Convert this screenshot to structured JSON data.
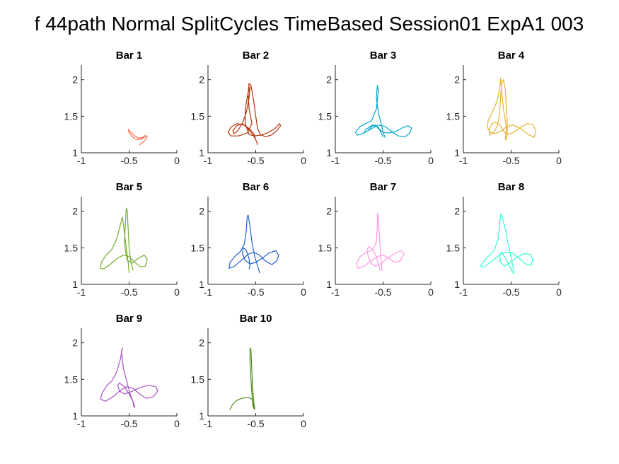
{
  "figure": {
    "suptitle": "f 44path Normal SplitCycles TimeBased Session01 ExpA1 003"
  },
  "chart_data": [
    {
      "type": "line",
      "title": "Bar 1",
      "xlim": [
        -1,
        0
      ],
      "ylim": [
        1,
        2.2
      ],
      "xticks": [
        "-1",
        "-0.5",
        "0"
      ],
      "yticks": [
        "1",
        "1.5",
        "2"
      ],
      "color": "#ff6a4d",
      "x": [
        -0.39,
        -0.35,
        -0.32,
        -0.31,
        -0.33,
        -0.37,
        -0.42,
        -0.45,
        -0.48,
        -0.5,
        -0.51,
        -0.49,
        -0.44,
        -0.4,
        -0.36,
        -0.33
      ],
      "y": [
        1.11,
        1.15,
        1.19,
        1.23,
        1.22,
        1.19,
        1.18,
        1.2,
        1.24,
        1.28,
        1.32,
        1.29,
        1.23,
        1.2,
        1.21,
        1.24
      ]
    },
    {
      "type": "line",
      "title": "Bar 2",
      "xlim": [
        -1,
        0
      ],
      "ylim": [
        1,
        2.2
      ],
      "xticks": [
        "-1",
        "-0.5",
        "0"
      ],
      "yticks": [
        "1",
        "1.5",
        "2"
      ],
      "color": "#b2330a",
      "x": [
        -0.48,
        -0.5,
        -0.52,
        -0.56,
        -0.62,
        -0.7,
        -0.76,
        -0.79,
        -0.76,
        -0.68,
        -0.59,
        -0.54,
        -0.57,
        -0.58,
        -0.57,
        -0.55,
        -0.52,
        -0.5,
        -0.48,
        -0.45,
        -0.4,
        -0.34,
        -0.28,
        -0.24,
        -0.25,
        -0.3,
        -0.38,
        -0.45,
        -0.52,
        -0.57,
        -0.61,
        -0.61,
        -0.58,
        -0.56,
        -0.57,
        -0.6,
        -0.64,
        -0.69,
        -0.73,
        -0.74,
        -0.7,
        -0.64,
        -0.58,
        -0.53,
        -0.5,
        -0.48
      ],
      "y": [
        1.11,
        1.18,
        1.26,
        1.32,
        1.38,
        1.4,
        1.35,
        1.28,
        1.23,
        1.23,
        1.27,
        1.4,
        1.6,
        1.8,
        1.95,
        1.92,
        1.7,
        1.5,
        1.33,
        1.25,
        1.22,
        1.24,
        1.3,
        1.37,
        1.4,
        1.33,
        1.27,
        1.24,
        1.23,
        1.25,
        1.4,
        1.6,
        1.82,
        1.9,
        1.75,
        1.55,
        1.4,
        1.3,
        1.26,
        1.3,
        1.37,
        1.4,
        1.33,
        1.25,
        1.18,
        1.11
      ]
    },
    {
      "type": "line",
      "title": "Bar 3",
      "xlim": [
        -1,
        0
      ],
      "ylim": [
        1,
        2.2
      ],
      "xticks": [
        "-1",
        "-0.5",
        "0"
      ],
      "yticks": [
        "1",
        "1.5",
        "2"
      ],
      "color": "#00a8cc",
      "x": [
        -0.48,
        -0.5,
        -0.52,
        -0.55,
        -0.57,
        -0.56,
        -0.55,
        -0.57,
        -0.62,
        -0.68,
        -0.74,
        -0.79,
        -0.77,
        -0.7,
        -0.62,
        -0.55,
        -0.48,
        -0.41,
        -0.34,
        -0.27,
        -0.22,
        -0.2,
        -0.24,
        -0.3,
        -0.37,
        -0.44,
        -0.5,
        -0.55,
        -0.58,
        -0.62,
        -0.66,
        -0.7,
        -0.68,
        -0.61,
        -0.55,
        -0.52,
        -0.5
      ],
      "y": [
        1.21,
        1.28,
        1.4,
        1.55,
        1.75,
        1.92,
        1.85,
        1.6,
        1.44,
        1.4,
        1.36,
        1.28,
        1.24,
        1.27,
        1.33,
        1.38,
        1.36,
        1.29,
        1.23,
        1.22,
        1.27,
        1.34,
        1.37,
        1.34,
        1.29,
        1.27,
        1.28,
        1.33,
        1.38,
        1.36,
        1.3,
        1.27,
        1.32,
        1.38,
        1.35,
        1.27,
        1.22
      ]
    },
    {
      "type": "line",
      "title": "Bar 4",
      "xlim": [
        -1,
        0
      ],
      "ylim": [
        1,
        2.2
      ],
      "xticks": [
        "-1",
        "-0.5",
        "0"
      ],
      "yticks": [
        "1",
        "1.5",
        "2"
      ],
      "color": "#e8b232",
      "x": [
        -0.56,
        -0.55,
        -0.58,
        -0.6,
        -0.61,
        -0.62,
        -0.65,
        -0.7,
        -0.74,
        -0.75,
        -0.72,
        -0.67,
        -0.6,
        -0.55,
        -0.48,
        -0.4,
        -0.32,
        -0.26,
        -0.24,
        -0.27,
        -0.33,
        -0.4,
        -0.47,
        -0.54,
        -0.58,
        -0.62,
        -0.66,
        -0.7,
        -0.73,
        -0.72,
        -0.68,
        -0.64,
        -0.62,
        -0.61,
        -0.6,
        -0.58,
        -0.56,
        -0.55,
        -0.54,
        -0.54,
        -0.55
      ],
      "y": [
        1.18,
        1.35,
        1.6,
        1.85,
        2.02,
        1.88,
        1.7,
        1.55,
        1.44,
        1.35,
        1.28,
        1.26,
        1.3,
        1.36,
        1.38,
        1.33,
        1.25,
        1.21,
        1.3,
        1.38,
        1.4,
        1.35,
        1.28,
        1.25,
        1.3,
        1.38,
        1.42,
        1.4,
        1.32,
        1.24,
        1.28,
        1.38,
        1.55,
        1.75,
        1.95,
        2.0,
        1.85,
        1.6,
        1.4,
        1.25,
        1.18
      ]
    },
    {
      "type": "line",
      "title": "Bar 5",
      "xlim": [
        -1,
        0
      ],
      "ylim": [
        1,
        2.2
      ],
      "xticks": [
        "-1",
        "-0.5",
        "0"
      ],
      "yticks": [
        "1",
        "1.5",
        "2"
      ],
      "color": "#77ac30",
      "x": [
        -0.5,
        -0.51,
        -0.53,
        -0.55,
        -0.57,
        -0.59,
        -0.63,
        -0.68,
        -0.74,
        -0.79,
        -0.8,
        -0.77,
        -0.7,
        -0.62,
        -0.56,
        -0.5,
        -0.44,
        -0.38,
        -0.33,
        -0.31,
        -0.34,
        -0.4,
        -0.47,
        -0.52,
        -0.55,
        -0.54,
        -0.53,
        -0.52,
        -0.51,
        -0.5,
        -0.48,
        -0.46
      ],
      "y": [
        1.16,
        1.3,
        1.5,
        1.72,
        1.92,
        1.82,
        1.62,
        1.48,
        1.4,
        1.3,
        1.22,
        1.21,
        1.27,
        1.36,
        1.4,
        1.38,
        1.3,
        1.24,
        1.25,
        1.34,
        1.4,
        1.36,
        1.29,
        1.33,
        1.55,
        1.8,
        2.04,
        2.02,
        1.75,
        1.5,
        1.3,
        1.2
      ]
    },
    {
      "type": "line",
      "title": "Bar 6",
      "xlim": [
        -1,
        0
      ],
      "ylim": [
        1,
        2.2
      ],
      "xticks": [
        "-1",
        "-0.5",
        "0"
      ],
      "yticks": [
        "1",
        "1.5",
        "2"
      ],
      "color": "#1f5fcc",
      "x": [
        -0.46,
        -0.48,
        -0.51,
        -0.54,
        -0.56,
        -0.58,
        -0.59,
        -0.6,
        -0.62,
        -0.66,
        -0.72,
        -0.77,
        -0.78,
        -0.73,
        -0.65,
        -0.58,
        -0.52,
        -0.46,
        -0.4,
        -0.33,
        -0.28,
        -0.26,
        -0.29,
        -0.36,
        -0.43,
        -0.5,
        -0.56,
        -0.61,
        -0.64,
        -0.63,
        -0.6,
        -0.57,
        -0.56,
        -0.57
      ],
      "y": [
        1.16,
        1.25,
        1.38,
        1.58,
        1.8,
        1.95,
        1.92,
        1.72,
        1.55,
        1.45,
        1.38,
        1.3,
        1.22,
        1.24,
        1.33,
        1.41,
        1.44,
        1.4,
        1.32,
        1.27,
        1.32,
        1.4,
        1.46,
        1.43,
        1.36,
        1.3,
        1.28,
        1.33,
        1.42,
        1.5,
        1.47,
        1.35,
        1.25,
        1.21
      ]
    },
    {
      "type": "line",
      "title": "Bar 7",
      "xlim": [
        -1,
        0
      ],
      "ylim": [
        1,
        2.2
      ],
      "xticks": [
        "-1",
        "-0.5",
        "0"
      ],
      "yticks": [
        "1",
        "1.5",
        "2"
      ],
      "color": "#ff99e6",
      "x": [
        -0.51,
        -0.52,
        -0.53,
        -0.54,
        -0.55,
        -0.56,
        -0.56,
        -0.57,
        -0.61,
        -0.67,
        -0.74,
        -0.78,
        -0.76,
        -0.7,
        -0.62,
        -0.56,
        -0.5,
        -0.44,
        -0.38,
        -0.32,
        -0.28,
        -0.31,
        -0.38,
        -0.46,
        -0.53,
        -0.58,
        -0.62,
        -0.65,
        -0.67,
        -0.65,
        -0.61,
        -0.57,
        -0.55,
        -0.53
      ],
      "y": [
        1.19,
        1.3,
        1.48,
        1.7,
        1.92,
        1.97,
        1.78,
        1.58,
        1.47,
        1.44,
        1.38,
        1.28,
        1.22,
        1.25,
        1.32,
        1.38,
        1.4,
        1.36,
        1.3,
        1.32,
        1.42,
        1.46,
        1.42,
        1.35,
        1.28,
        1.25,
        1.28,
        1.36,
        1.46,
        1.52,
        1.48,
        1.38,
        1.27,
        1.19
      ]
    },
    {
      "type": "line",
      "title": "Bar 8",
      "xlim": [
        -1,
        0
      ],
      "ylim": [
        1,
        2.2
      ],
      "xticks": [
        "-1",
        "-0.5",
        "0"
      ],
      "yticks": [
        "1",
        "1.5",
        "2"
      ],
      "color": "#33ffd4",
      "x": [
        -0.47,
        -0.48,
        -0.5,
        -0.53,
        -0.56,
        -0.59,
        -0.61,
        -0.62,
        -0.64,
        -0.68,
        -0.74,
        -0.8,
        -0.82,
        -0.78,
        -0.7,
        -0.62,
        -0.55,
        -0.48,
        -0.42,
        -0.35,
        -0.29,
        -0.27,
        -0.3,
        -0.37,
        -0.45,
        -0.52,
        -0.57,
        -0.61,
        -0.62,
        -0.6,
        -0.56,
        -0.52,
        -0.49,
        -0.47
      ],
      "y": [
        1.15,
        1.24,
        1.36,
        1.55,
        1.75,
        1.9,
        1.96,
        1.8,
        1.6,
        1.46,
        1.38,
        1.3,
        1.24,
        1.24,
        1.32,
        1.4,
        1.44,
        1.43,
        1.36,
        1.28,
        1.26,
        1.34,
        1.41,
        1.42,
        1.36,
        1.29,
        1.25,
        1.3,
        1.4,
        1.44,
        1.36,
        1.26,
        1.18,
        1.15
      ]
    },
    {
      "type": "line",
      "title": "Bar 9",
      "xlim": [
        -1,
        0
      ],
      "ylim": [
        1,
        2.2
      ],
      "xticks": [
        "-1",
        "-0.5",
        "0"
      ],
      "yticks": [
        "1",
        "1.5",
        "2"
      ],
      "color": "#a650c8",
      "x": [
        -0.44,
        -0.46,
        -0.49,
        -0.52,
        -0.56,
        -0.58,
        -0.57,
        -0.59,
        -0.63,
        -0.68,
        -0.73,
        -0.78,
        -0.8,
        -0.75,
        -0.67,
        -0.6,
        -0.53,
        -0.46,
        -0.39,
        -0.32,
        -0.25,
        -0.2,
        -0.22,
        -0.3,
        -0.4,
        -0.48,
        -0.55,
        -0.6,
        -0.62,
        -0.6,
        -0.55,
        -0.5,
        -0.46,
        -0.45
      ],
      "y": [
        1.12,
        1.2,
        1.3,
        1.45,
        1.65,
        1.88,
        1.93,
        1.78,
        1.6,
        1.48,
        1.42,
        1.32,
        1.23,
        1.2,
        1.26,
        1.34,
        1.4,
        1.38,
        1.3,
        1.24,
        1.26,
        1.34,
        1.4,
        1.42,
        1.38,
        1.33,
        1.3,
        1.34,
        1.42,
        1.45,
        1.4,
        1.3,
        1.2,
        1.12
      ]
    },
    {
      "type": "line",
      "title": "Bar 10",
      "xlim": [
        -1,
        0
      ],
      "ylim": [
        1,
        2.2
      ],
      "xticks": [
        "-1",
        "-0.5",
        "0"
      ],
      "yticks": [
        "1",
        "1.5",
        "2"
      ],
      "color": "#4d8a18",
      "x": [
        -0.77,
        -0.74,
        -0.7,
        -0.65,
        -0.61,
        -0.57,
        -0.54,
        -0.53,
        -0.52,
        -0.52,
        -0.53,
        -0.54,
        -0.55,
        -0.56,
        -0.56,
        -0.55,
        -0.54,
        -0.53,
        -0.52,
        -0.51
      ],
      "y": [
        1.09,
        1.16,
        1.21,
        1.24,
        1.25,
        1.25,
        1.23,
        1.18,
        1.12,
        1.1,
        1.15,
        1.3,
        1.5,
        1.72,
        1.93,
        1.9,
        1.6,
        1.35,
        1.18,
        1.09
      ]
    }
  ]
}
